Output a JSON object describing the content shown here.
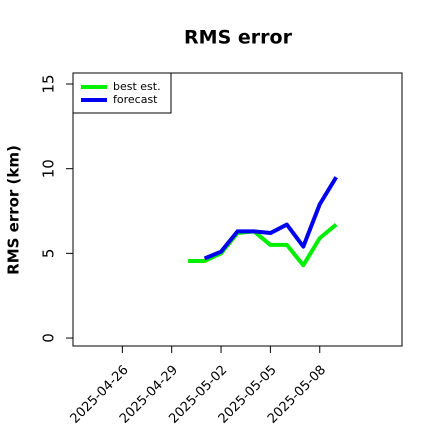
{
  "chart_data": {
    "type": "line",
    "title": "RMS error",
    "y_label": "RMS error (km)",
    "x": [
      "2025-04-30",
      "2025-05-01",
      "2025-05-02",
      "2025-05-03",
      "2025-05-04",
      "2025-05-05",
      "2025-05-06",
      "2025-05-07",
      "2025-05-08",
      "2025-05-09"
    ],
    "series": [
      {
        "name": "best est.",
        "color": "#00ee00",
        "values": [
          4.55,
          4.55,
          5.0,
          6.2,
          6.3,
          5.5,
          5.5,
          4.3,
          5.9,
          6.7
        ]
      },
      {
        "name": "forecast",
        "color": "#0000ee",
        "values": [
          null,
          4.7,
          5.1,
          6.3,
          6.3,
          6.2,
          6.7,
          5.4,
          7.9,
          9.5
        ]
      }
    ],
    "xlim": [
      "2025-04-23",
      "2025-05-13"
    ],
    "xticks": [
      "2025-04-26",
      "2025-04-29",
      "2025-05-02",
      "2025-05-05",
      "2025-05-08"
    ],
    "ylim": [
      -0.47,
      15.65
    ],
    "yticks": [
      0,
      5,
      10,
      15
    ],
    "legend": "upper left",
    "grid": false
  }
}
